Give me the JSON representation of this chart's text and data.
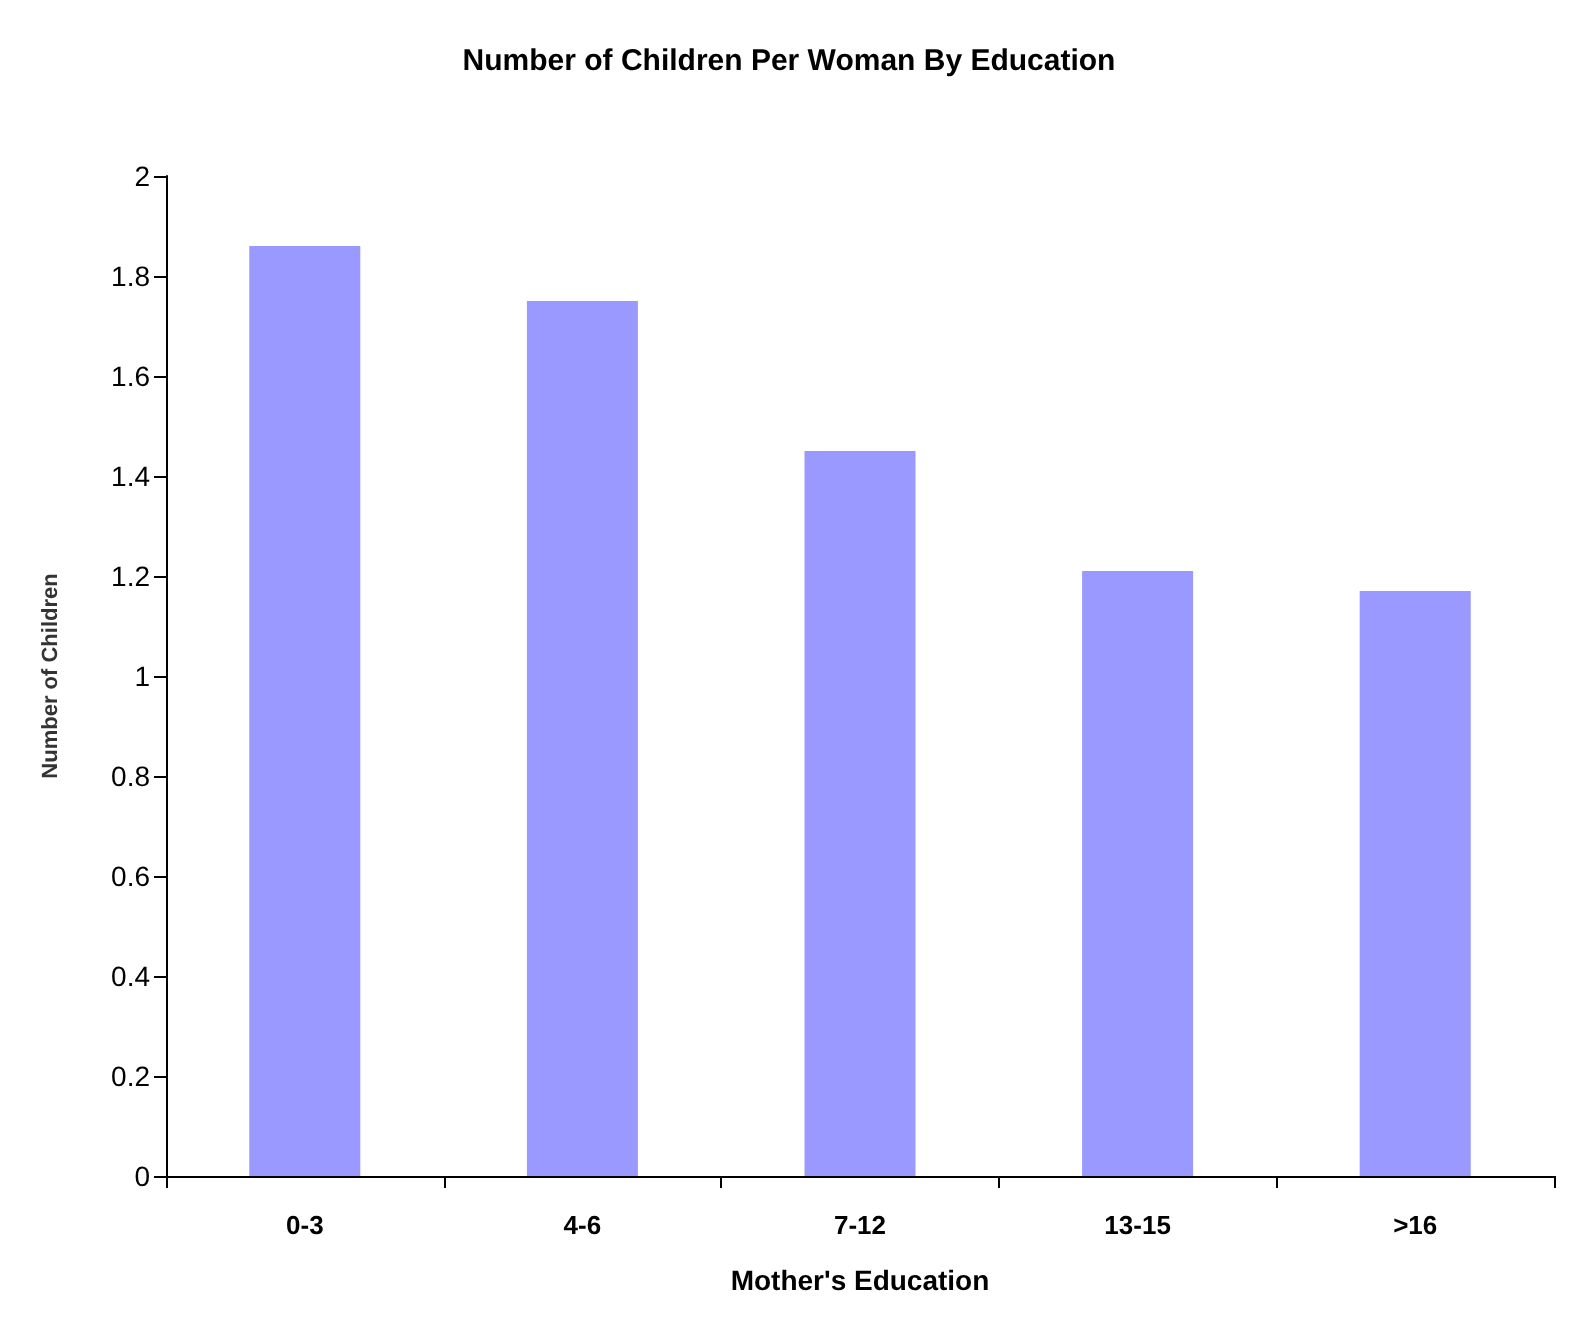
{
  "chart_data": {
    "type": "bar",
    "title": "Number of Children Per Woman By Education",
    "xlabel": "Mother's Education",
    "ylabel": "Number of Children",
    "categories": [
      "0-3",
      "4-6",
      "7-12",
      "13-15",
      ">16"
    ],
    "values": [
      1.86,
      1.75,
      1.45,
      1.21,
      1.17
    ],
    "color": "#9999ff",
    "ylim": [
      0,
      2
    ],
    "yticks": [
      0,
      0.2,
      0.4,
      0.6,
      0.8,
      1,
      1.2,
      1.4,
      1.6,
      1.8,
      2
    ],
    "grid": false
  }
}
